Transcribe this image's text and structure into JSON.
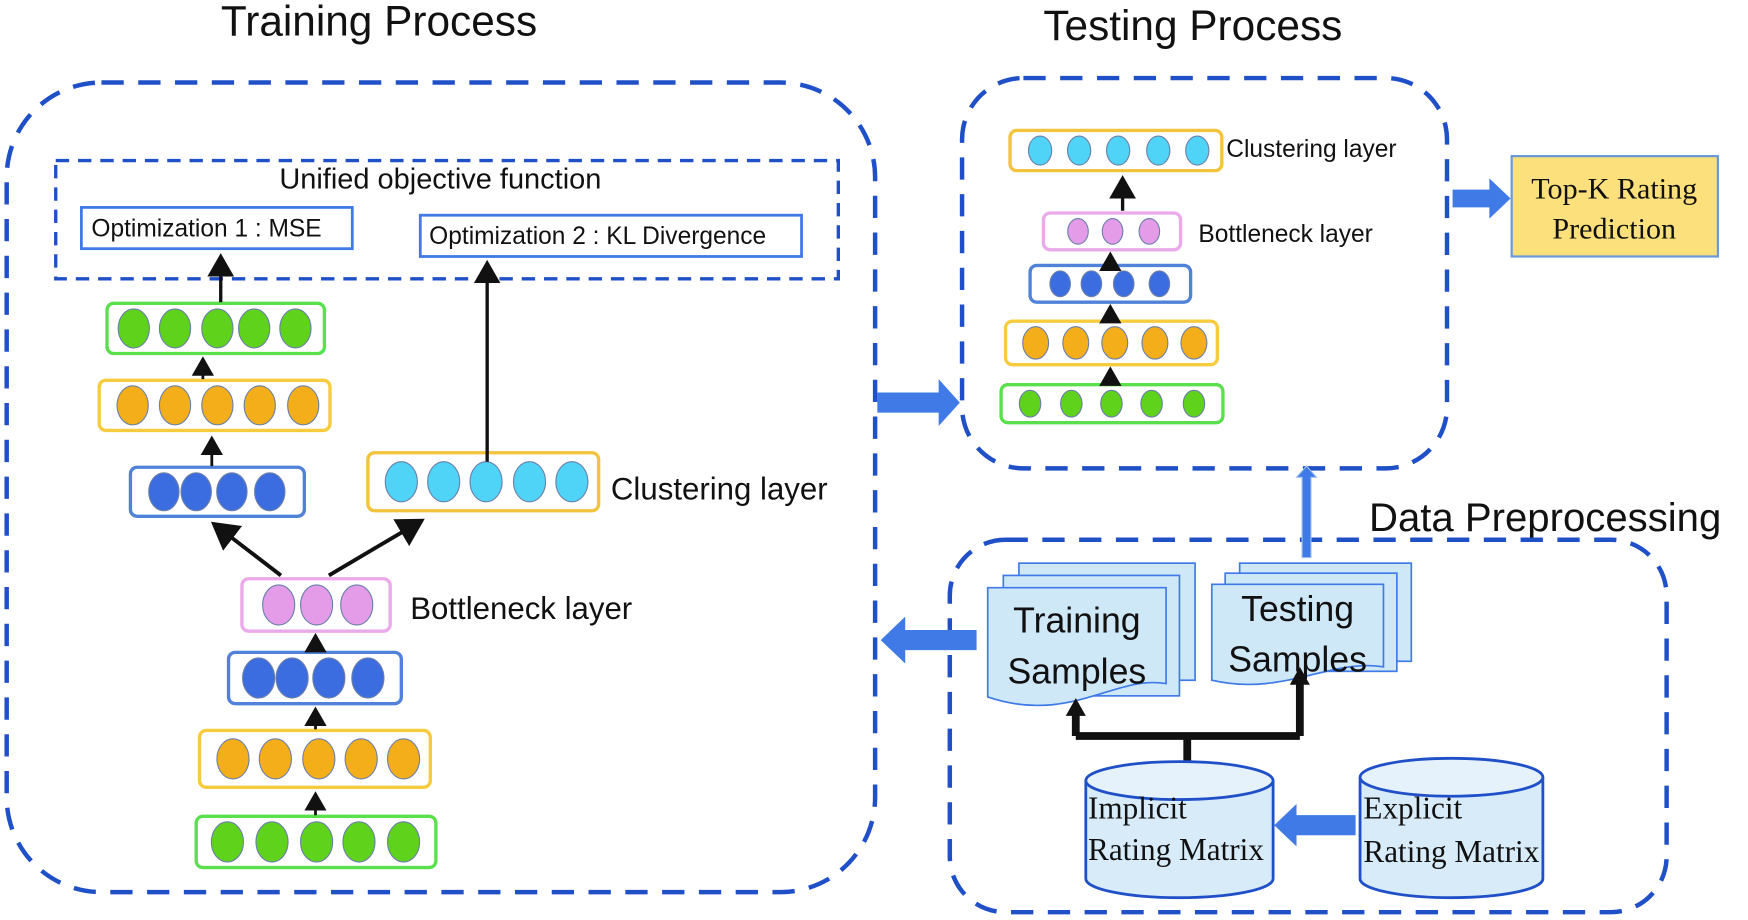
{
  "titles": {
    "training": "Training Process",
    "testing": "Testing Process",
    "preprocessing": "Data Preprocessing"
  },
  "objective": {
    "title": "Unified objective function",
    "opt1": "Optimization 1 :  MSE",
    "opt2": "Optimization 2 : KL Divergence"
  },
  "labels": {
    "clustering": "Clustering layer",
    "bottleneck": "Bottleneck layer"
  },
  "topk": {
    "line1": "Top-K Rating",
    "line2": "Prediction"
  },
  "samples": {
    "training": [
      "Training",
      "Samples"
    ],
    "testing": [
      "Testing",
      "Samples"
    ]
  },
  "matrices": {
    "implicit": [
      "Implicit",
      "Rating Matrix"
    ],
    "explicit": [
      "Explicit",
      "Rating Matrix"
    ]
  },
  "colors": {
    "dashed_border": "#2050c8",
    "flow_arrow": "#3f7ae6",
    "green": {
      "node": "#5fd21c",
      "border": "#5ae04c"
    },
    "orange": {
      "node": "#f4ae1a",
      "border": "#f6cc3e"
    },
    "blue": {
      "node": "#3c6de0",
      "border": "#4f82d8"
    },
    "cyan": {
      "node": "#4fd3f6",
      "border": "#f2c33c"
    },
    "pink": {
      "node": "#e49ce8",
      "border": "#eaaaea"
    },
    "document": "#cfe8f8",
    "topk_fill": "#fbe07c"
  },
  "networks": {
    "training_reconstruction": [
      "green",
      "orange",
      "blue",
      "pink",
      "blue",
      "orange",
      "green"
    ],
    "training_clustering": [
      "cyan"
    ],
    "testing": [
      "cyan",
      "pink",
      "blue",
      "orange",
      "green"
    ]
  }
}
